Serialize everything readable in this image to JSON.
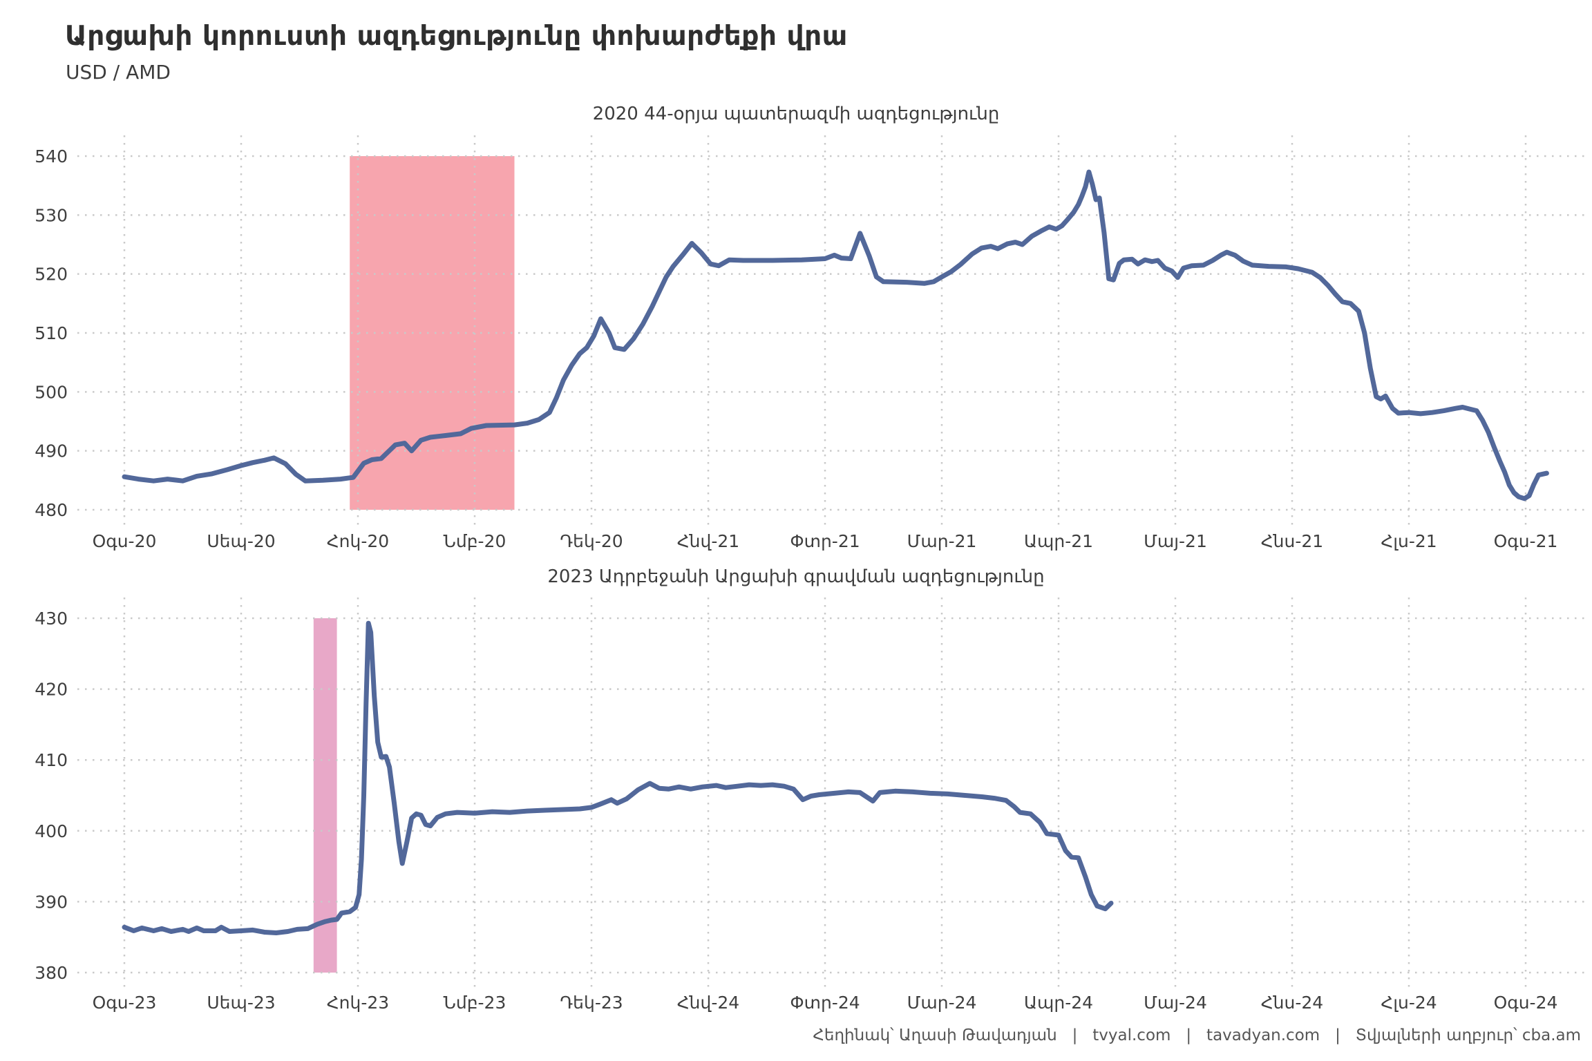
{
  "header": {
    "title": "Արցախի կորուստի ազդեցությունը փոխարժեքի վրա",
    "subtitle": "USD / AMD"
  },
  "footer": {
    "text": "Հեղինակ՝ Աղասի Թավադյան   |   tvyal.com   |   tavadyan.com   |   Տվյալների աղբյուր՝ cba.am"
  },
  "colors": {
    "background": "#ffffff",
    "grid": "#c9c9c9",
    "tick_text": "#3f3f3f",
    "line": "#52689a",
    "band_2020": "#f7a5ae",
    "band_2023": "#e8a8c8"
  },
  "chart_data": [
    {
      "type": "line",
      "subtitle": "2020 44-օրյա պատերազմի ազդեցությունը",
      "ylabel": "USD / AMD",
      "ylim": [
        480,
        540
      ],
      "y_ticks": [
        540,
        530,
        520,
        510,
        500,
        490,
        480
      ],
      "x_tick_months": [
        0,
        1,
        2,
        3,
        4,
        5,
        6,
        7,
        8,
        9,
        10,
        11,
        12
      ],
      "x_tick_labels": [
        "Օգս-20",
        "Սեպ-20",
        "Հոկ-20",
        "Նմբ-20",
        "Դեկ-20",
        "Հնվ-21",
        "Փտր-21",
        "Մար-21",
        "Ապր-21",
        "Մայ-21",
        "Հնս-21",
        "Հլս-21",
        "Օգս-21"
      ],
      "grid": "dotted",
      "legend": "none",
      "band": {
        "x0": 1.93,
        "x1": 3.34,
        "color": "#f7a5ae",
        "meaning": "2020 44-day war period"
      },
      "line_color": "#52689a",
      "series": [
        [
          0.0,
          485.6
        ],
        [
          0.12,
          485.2
        ],
        [
          0.25,
          484.9
        ],
        [
          0.37,
          485.2
        ],
        [
          0.5,
          484.9
        ],
        [
          0.62,
          485.7
        ],
        [
          0.75,
          486.1
        ],
        [
          0.88,
          486.8
        ],
        [
          1.0,
          487.5
        ],
        [
          1.1,
          488.0
        ],
        [
          1.2,
          488.4
        ],
        [
          1.28,
          488.8
        ],
        [
          1.38,
          487.8
        ],
        [
          1.47,
          486.0
        ],
        [
          1.55,
          484.9
        ],
        [
          1.7,
          485.0
        ],
        [
          1.85,
          485.2
        ],
        [
          1.96,
          485.5
        ],
        [
          2.05,
          487.9
        ],
        [
          2.12,
          488.5
        ],
        [
          2.2,
          488.7
        ],
        [
          2.32,
          491.0
        ],
        [
          2.4,
          491.3
        ],
        [
          2.46,
          490.0
        ],
        [
          2.54,
          491.8
        ],
        [
          2.62,
          492.3
        ],
        [
          2.75,
          492.6
        ],
        [
          2.88,
          492.9
        ],
        [
          2.97,
          493.8
        ],
        [
          3.1,
          494.3
        ],
        [
          3.34,
          494.4
        ],
        [
          3.45,
          494.7
        ],
        [
          3.55,
          495.3
        ],
        [
          3.64,
          496.5
        ],
        [
          3.7,
          499.0
        ],
        [
          3.76,
          502.0
        ],
        [
          3.83,
          504.5
        ],
        [
          3.9,
          506.5
        ],
        [
          3.96,
          507.5
        ],
        [
          4.02,
          509.5
        ],
        [
          4.08,
          512.4
        ],
        [
          4.15,
          510.0
        ],
        [
          4.2,
          507.5
        ],
        [
          4.28,
          507.2
        ],
        [
          4.36,
          509.0
        ],
        [
          4.44,
          511.5
        ],
        [
          4.52,
          514.5
        ],
        [
          4.58,
          517.0
        ],
        [
          4.64,
          519.5
        ],
        [
          4.7,
          521.3
        ],
        [
          4.78,
          523.2
        ],
        [
          4.86,
          525.2
        ],
        [
          4.94,
          523.6
        ],
        [
          5.02,
          521.7
        ],
        [
          5.09,
          521.4
        ],
        [
          5.18,
          522.4
        ],
        [
          5.3,
          522.3
        ],
        [
          5.55,
          522.3
        ],
        [
          5.8,
          522.4
        ],
        [
          6.0,
          522.6
        ],
        [
          6.08,
          523.2
        ],
        [
          6.14,
          522.7
        ],
        [
          6.22,
          522.6
        ],
        [
          6.3,
          526.9
        ],
        [
          6.38,
          523.0
        ],
        [
          6.44,
          519.5
        ],
        [
          6.5,
          518.7
        ],
        [
          6.7,
          518.6
        ],
        [
          6.85,
          518.4
        ],
        [
          6.93,
          518.7
        ],
        [
          7.0,
          519.5
        ],
        [
          7.08,
          520.4
        ],
        [
          7.16,
          521.6
        ],
        [
          7.26,
          523.4
        ],
        [
          7.34,
          524.4
        ],
        [
          7.42,
          524.7
        ],
        [
          7.48,
          524.3
        ],
        [
          7.56,
          525.1
        ],
        [
          7.63,
          525.4
        ],
        [
          7.69,
          525.0
        ],
        [
          7.77,
          526.4
        ],
        [
          7.85,
          527.3
        ],
        [
          7.92,
          528.0
        ],
        [
          7.98,
          527.6
        ],
        [
          8.03,
          528.2
        ],
        [
          8.08,
          529.3
        ],
        [
          8.13,
          530.5
        ],
        [
          8.17,
          531.8
        ],
        [
          8.2,
          533.2
        ],
        [
          8.23,
          534.8
        ],
        [
          8.26,
          537.3
        ],
        [
          8.29,
          535.2
        ],
        [
          8.32,
          532.6
        ],
        [
          8.35,
          532.9
        ],
        [
          8.39,
          527.0
        ],
        [
          8.43,
          519.2
        ],
        [
          8.47,
          519.0
        ],
        [
          8.52,
          521.8
        ],
        [
          8.56,
          522.4
        ],
        [
          8.63,
          522.5
        ],
        [
          8.68,
          521.7
        ],
        [
          8.74,
          522.4
        ],
        [
          8.8,
          522.1
        ],
        [
          8.85,
          522.3
        ],
        [
          8.91,
          521.0
        ],
        [
          8.97,
          520.5
        ],
        [
          9.02,
          519.4
        ],
        [
          9.07,
          521.0
        ],
        [
          9.14,
          521.4
        ],
        [
          9.24,
          521.5
        ],
        [
          9.32,
          522.3
        ],
        [
          9.39,
          523.2
        ],
        [
          9.44,
          523.7
        ],
        [
          9.51,
          523.2
        ],
        [
          9.58,
          522.2
        ],
        [
          9.66,
          521.5
        ],
        [
          9.8,
          521.3
        ],
        [
          9.95,
          521.2
        ],
        [
          10.05,
          520.9
        ],
        [
          10.17,
          520.3
        ],
        [
          10.24,
          519.4
        ],
        [
          10.31,
          518.0
        ],
        [
          10.37,
          516.6
        ],
        [
          10.43,
          515.3
        ],
        [
          10.5,
          515.0
        ],
        [
          10.57,
          513.7
        ],
        [
          10.62,
          510.0
        ],
        [
          10.67,
          504.0
        ],
        [
          10.72,
          499.2
        ],
        [
          10.76,
          498.8
        ],
        [
          10.8,
          499.3
        ],
        [
          10.86,
          497.2
        ],
        [
          10.91,
          496.4
        ],
        [
          11.0,
          496.5
        ],
        [
          11.1,
          496.3
        ],
        [
          11.2,
          496.5
        ],
        [
          11.3,
          496.8
        ],
        [
          11.4,
          497.2
        ],
        [
          11.46,
          497.4
        ],
        [
          11.52,
          497.1
        ],
        [
          11.58,
          496.8
        ],
        [
          11.63,
          495.2
        ],
        [
          11.68,
          493.2
        ],
        [
          11.73,
          490.6
        ],
        [
          11.78,
          488.2
        ],
        [
          11.82,
          486.4
        ],
        [
          11.86,
          484.2
        ],
        [
          11.9,
          482.9
        ],
        [
          11.94,
          482.2
        ],
        [
          11.99,
          481.9
        ],
        [
          12.03,
          482.4
        ],
        [
          12.07,
          484.3
        ],
        [
          12.11,
          485.9
        ],
        [
          12.18,
          486.2
        ]
      ]
    },
    {
      "type": "line",
      "subtitle": "2023 Ադրբեջանի Արցախի գրավման ազդեցությունը",
      "ylabel": "USD / AMD",
      "ylim": [
        380,
        430
      ],
      "y_ticks": [
        430,
        420,
        410,
        400,
        390,
        380
      ],
      "x_tick_months": [
        0,
        1,
        2,
        3,
        4,
        5,
        6,
        7,
        8,
        9,
        10,
        11,
        12
      ],
      "x_tick_labels": [
        "Օգս-23",
        "Սեպ-23",
        "Հոկ-23",
        "Նմբ-23",
        "Դեկ-23",
        "Հնվ-24",
        "Փտր-24",
        "Մար-24",
        "Ապր-24",
        "Մայ-24",
        "Հնս-24",
        "Հլս-24",
        "Օգս-24"
      ],
      "grid": "dotted",
      "legend": "none",
      "band": {
        "x0": 1.62,
        "x1": 1.82,
        "color": "#e8a8c8",
        "meaning": "September 2023 capture of Artsakh"
      },
      "line_color": "#52689a",
      "series": [
        [
          0.0,
          386.4
        ],
        [
          0.08,
          385.9
        ],
        [
          0.15,
          386.3
        ],
        [
          0.25,
          385.9
        ],
        [
          0.32,
          386.2
        ],
        [
          0.4,
          385.8
        ],
        [
          0.5,
          386.1
        ],
        [
          0.55,
          385.8
        ],
        [
          0.62,
          386.3
        ],
        [
          0.68,
          385.9
        ],
        [
          0.78,
          385.9
        ],
        [
          0.83,
          386.4
        ],
        [
          0.9,
          385.8
        ],
        [
          1.0,
          385.9
        ],
        [
          1.1,
          386.0
        ],
        [
          1.2,
          385.7
        ],
        [
          1.3,
          385.6
        ],
        [
          1.4,
          385.8
        ],
        [
          1.48,
          386.1
        ],
        [
          1.57,
          386.2
        ],
        [
          1.65,
          386.8
        ],
        [
          1.72,
          387.2
        ],
        [
          1.77,
          387.4
        ],
        [
          1.82,
          387.5
        ],
        [
          1.86,
          388.4
        ],
        [
          1.93,
          388.6
        ],
        [
          1.98,
          389.2
        ],
        [
          2.01,
          391.0
        ],
        [
          2.03,
          396.0
        ],
        [
          2.05,
          405.0
        ],
        [
          2.07,
          418.0
        ],
        [
          2.09,
          429.3
        ],
        [
          2.11,
          428.0
        ],
        [
          2.14,
          419.0
        ],
        [
          2.17,
          412.5
        ],
        [
          2.2,
          410.4
        ],
        [
          2.24,
          410.5
        ],
        [
          2.27,
          409.0
        ],
        [
          2.31,
          404.0
        ],
        [
          2.35,
          398.5
        ],
        [
          2.38,
          395.4
        ],
        [
          2.42,
          398.5
        ],
        [
          2.46,
          401.8
        ],
        [
          2.5,
          402.4
        ],
        [
          2.54,
          402.2
        ],
        [
          2.58,
          400.9
        ],
        [
          2.62,
          400.7
        ],
        [
          2.68,
          401.9
        ],
        [
          2.75,
          402.4
        ],
        [
          2.85,
          402.6
        ],
        [
          3.0,
          402.5
        ],
        [
          3.15,
          402.7
        ],
        [
          3.3,
          402.6
        ],
        [
          3.45,
          402.8
        ],
        [
          3.6,
          402.9
        ],
        [
          3.75,
          403.0
        ],
        [
          3.9,
          403.1
        ],
        [
          4.0,
          403.3
        ],
        [
          4.08,
          403.8
        ],
        [
          4.17,
          404.4
        ],
        [
          4.22,
          403.9
        ],
        [
          4.3,
          404.5
        ],
        [
          4.4,
          405.8
        ],
        [
          4.5,
          406.7
        ],
        [
          4.58,
          406.0
        ],
        [
          4.66,
          405.9
        ],
        [
          4.75,
          406.2
        ],
        [
          4.85,
          405.9
        ],
        [
          4.95,
          406.2
        ],
        [
          5.07,
          406.4
        ],
        [
          5.15,
          406.1
        ],
        [
          5.25,
          406.3
        ],
        [
          5.35,
          406.5
        ],
        [
          5.45,
          406.4
        ],
        [
          5.55,
          406.5
        ],
        [
          5.65,
          406.3
        ],
        [
          5.73,
          405.9
        ],
        [
          5.81,
          404.4
        ],
        [
          5.88,
          404.9
        ],
        [
          5.95,
          405.1
        ],
        [
          6.08,
          405.3
        ],
        [
          6.2,
          405.5
        ],
        [
          6.3,
          405.4
        ],
        [
          6.41,
          404.2
        ],
        [
          6.47,
          405.4
        ],
        [
          6.6,
          405.6
        ],
        [
          6.75,
          405.5
        ],
        [
          6.9,
          405.3
        ],
        [
          7.05,
          405.2
        ],
        [
          7.2,
          405.0
        ],
        [
          7.35,
          404.8
        ],
        [
          7.45,
          404.6
        ],
        [
          7.55,
          404.3
        ],
        [
          7.62,
          403.4
        ],
        [
          7.67,
          402.6
        ],
        [
          7.76,
          402.4
        ],
        [
          7.84,
          401.2
        ],
        [
          7.9,
          399.6
        ],
        [
          8.0,
          399.4
        ],
        [
          8.06,
          397.2
        ],
        [
          8.11,
          396.3
        ],
        [
          8.17,
          396.2
        ],
        [
          8.23,
          393.5
        ],
        [
          8.28,
          391.0
        ],
        [
          8.33,
          389.4
        ],
        [
          8.4,
          389.0
        ],
        [
          8.45,
          389.8
        ]
      ]
    }
  ]
}
